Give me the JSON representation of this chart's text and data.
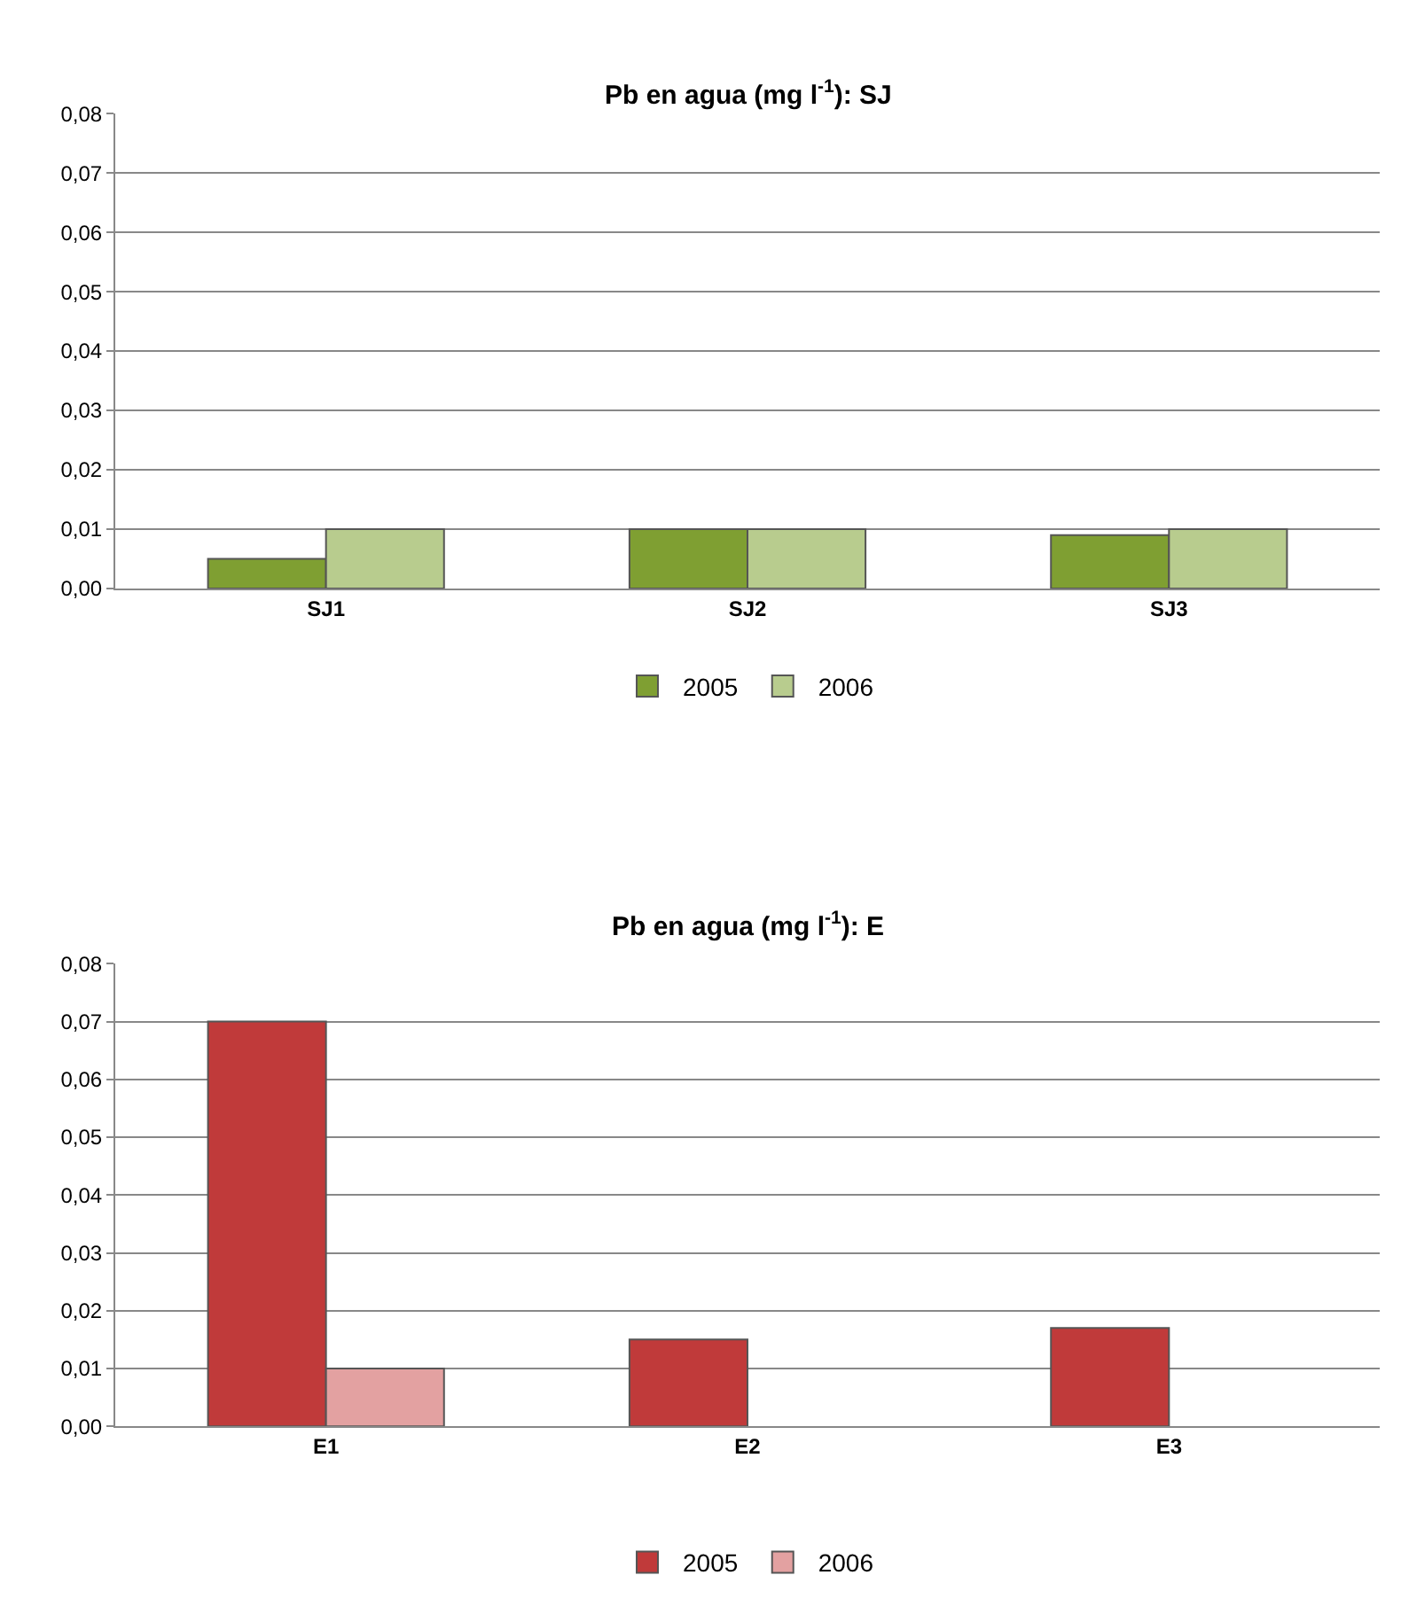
{
  "chart_data": [
    {
      "type": "bar",
      "title": "Pb en agua (mg l$^{-1}$): SJ",
      "categories": [
        "SJ1",
        "SJ2",
        "SJ3"
      ],
      "series": [
        {
          "name": "2005",
          "color": "#7f9f32",
          "values": [
            0.005,
            0.01,
            0.009
          ]
        },
        {
          "name": "2006",
          "color": "#b8cc8e",
          "values": [
            0.01,
            0.01,
            0.01
          ]
        }
      ],
      "ylim": [
        0,
        0.08
      ],
      "yticks": [
        {
          "value": 0,
          "label": "0,00"
        },
        {
          "value": 0.01,
          "label": "0,01"
        },
        {
          "value": 0.02,
          "label": "0,02"
        },
        {
          "value": 0.03,
          "label": "0,03"
        },
        {
          "value": 0.04,
          "label": "0,04"
        },
        {
          "value": 0.05,
          "label": "0,05"
        },
        {
          "value": 0.06,
          "label": "0,06"
        },
        {
          "value": 0.07,
          "label": "0,07"
        },
        {
          "value": 0.08,
          "label": "0,08"
        }
      ],
      "grid": "y",
      "legend": "bottom"
    },
    {
      "type": "bar",
      "title": "Pb en agua (mg l$^{-1}$): E",
      "categories": [
        "E1",
        "E2",
        "E3"
      ],
      "series": [
        {
          "name": "2005",
          "color": "#c03a3a",
          "values": [
            0.07,
            0.015,
            0.017
          ]
        },
        {
          "name": "2006",
          "color": "#e3a1a1",
          "values": [
            0.01,
            null,
            null
          ]
        }
      ],
      "ylim": [
        0,
        0.08
      ],
      "yticks": [
        {
          "value": 0,
          "label": "0,00"
        },
        {
          "value": 0.01,
          "label": "0,01"
        },
        {
          "value": 0.02,
          "label": "0,02"
        },
        {
          "value": 0.03,
          "label": "0,03"
        },
        {
          "value": 0.04,
          "label": "0,04"
        },
        {
          "value": 0.05,
          "label": "0,05"
        },
        {
          "value": 0.06,
          "label": "0,06"
        },
        {
          "value": 0.07,
          "label": "0,07"
        },
        {
          "value": 0.08,
          "label": "0,08"
        }
      ],
      "grid": "y",
      "legend": "bottom"
    }
  ]
}
